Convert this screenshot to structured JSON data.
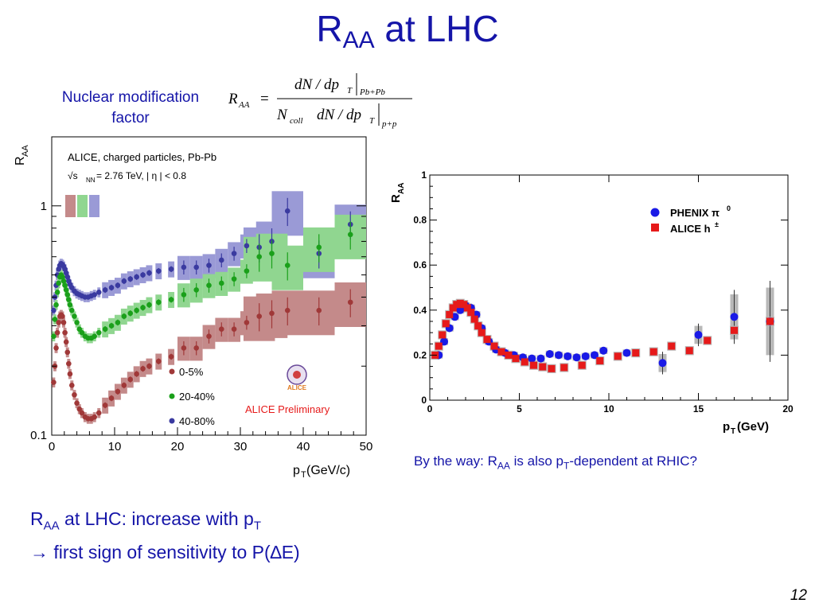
{
  "slide": {
    "title_main": "R",
    "title_sub": "AA",
    "title_rest": " at LHC",
    "nmf_label": "Nuclear modification factor",
    "formula": {
      "lhs_r": "R",
      "lhs_sub": "AA",
      "eq": "=",
      "num": "dN / dp",
      "num_sub_t": "T",
      "num_bar_sub": "Pb+Pb",
      "den_ncoll": "N",
      "den_ncoll_sub": "coll",
      "den": "dN / dp",
      "den_sub_t": "T",
      "den_bar_sub": "p+p"
    },
    "note_a": "By the way: R",
    "note_b": "AA",
    "note_c": " is also p",
    "note_d": "T",
    "note_e": "-dependent at RHIC?",
    "concl_line1_a": "R",
    "concl_line1_b": "AA",
    "concl_line1_c": " at LHC: increase with p",
    "concl_line1_d": "T",
    "concl_line2": "→ first sign of sensitivity to P(∆E)",
    "page_number": "12"
  },
  "colors": {
    "title": "#1515a8",
    "c0_5": "#a03838",
    "c0_5_band": "#c48a8a",
    "c20_40": "#1aa01a",
    "c20_40_band": "#90d690",
    "c40_80": "#3a3aa0",
    "c40_80_band": "#9a9ad6",
    "phenix": "#1a1ae6",
    "alice_rhic": "#e61a1a",
    "alice_prelim": "#e61a1a"
  },
  "chart_data": [
    {
      "type": "scatter",
      "title": "ALICE, charged particles, Pb-Pb",
      "energy_text_a": "√s",
      "energy_text_b": "NN",
      "energy_text_c": " = 2.76 TeV, | η | < 0.8",
      "xlabel": "p",
      "xlabel_sub": "T",
      "xlabel_unit": " (GeV/c)",
      "ylabel": "R",
      "ylabel_sub": "AA",
      "xlim": [
        0,
        50
      ],
      "ylim": [
        0.1,
        2.0
      ],
      "yscale": "log",
      "xticks": [
        "0",
        "10",
        "20",
        "30",
        "40",
        "50"
      ],
      "yticks": [
        "0.1",
        "1"
      ],
      "legend_position": "bottom-center",
      "preliminary_label": "ALICE Preliminary",
      "logo_label": "ALICE",
      "series": [
        {
          "name": "0-5%",
          "x": [
            0.3,
            0.5,
            0.7,
            0.9,
            1.1,
            1.3,
            1.5,
            1.7,
            1.9,
            2.1,
            2.3,
            2.5,
            2.7,
            2.9,
            3.2,
            3.6,
            4.0,
            4.4,
            4.8,
            5.3,
            5.8,
            6.3,
            6.8,
            7.5,
            8.5,
            9.5,
            10.5,
            11.5,
            12.5,
            13.5,
            14.5,
            15.5,
            17.0,
            19.0,
            21.0,
            23.0,
            25.0,
            27.0,
            29.0,
            31.0,
            33.0,
            35.0,
            37.5,
            42.5,
            47.5
          ],
          "values": [
            0.17,
            0.2,
            0.24,
            0.28,
            0.31,
            0.33,
            0.335,
            0.33,
            0.31,
            0.28,
            0.255,
            0.23,
            0.205,
            0.185,
            0.165,
            0.15,
            0.138,
            0.13,
            0.125,
            0.12,
            0.118,
            0.118,
            0.12,
            0.125,
            0.135,
            0.145,
            0.155,
            0.165,
            0.175,
            0.185,
            0.195,
            0.2,
            0.21,
            0.22,
            0.24,
            0.24,
            0.27,
            0.29,
            0.29,
            0.31,
            0.33,
            0.34,
            0.35,
            0.35,
            0.38
          ]
        },
        {
          "name": "20-40%",
          "x": [
            0.3,
            0.5,
            0.7,
            0.9,
            1.1,
            1.3,
            1.5,
            1.7,
            1.9,
            2.1,
            2.3,
            2.5,
            2.7,
            2.9,
            3.2,
            3.6,
            4.0,
            4.4,
            4.8,
            5.3,
            5.8,
            6.3,
            6.8,
            7.5,
            8.5,
            9.5,
            10.5,
            11.5,
            12.5,
            13.5,
            14.5,
            15.5,
            17.0,
            19.0,
            21.0,
            23.0,
            25.0,
            27.0,
            29.0,
            31.0,
            33.0,
            35.0,
            37.5,
            42.5,
            47.5
          ],
          "values": [
            0.27,
            0.32,
            0.37,
            0.42,
            0.46,
            0.49,
            0.5,
            0.49,
            0.47,
            0.45,
            0.43,
            0.41,
            0.39,
            0.37,
            0.35,
            0.33,
            0.31,
            0.29,
            0.28,
            0.27,
            0.265,
            0.265,
            0.27,
            0.28,
            0.29,
            0.3,
            0.31,
            0.33,
            0.34,
            0.35,
            0.36,
            0.37,
            0.38,
            0.39,
            0.41,
            0.43,
            0.45,
            0.46,
            0.48,
            0.52,
            0.6,
            0.62,
            0.55,
            0.66,
            0.75
          ]
        },
        {
          "name": "40-80%",
          "x": [
            0.3,
            0.5,
            0.7,
            0.9,
            1.1,
            1.3,
            1.5,
            1.7,
            1.9,
            2.1,
            2.3,
            2.5,
            2.7,
            2.9,
            3.2,
            3.6,
            4.0,
            4.4,
            4.8,
            5.3,
            5.8,
            6.3,
            6.8,
            7.5,
            8.5,
            9.5,
            10.5,
            11.5,
            12.5,
            13.5,
            14.5,
            15.5,
            17.0,
            19.0,
            21.0,
            23.0,
            25.0,
            27.0,
            29.0,
            31.0,
            33.0,
            35.0,
            37.5,
            42.5,
            47.5
          ],
          "values": [
            0.35,
            0.4,
            0.45,
            0.5,
            0.53,
            0.55,
            0.56,
            0.555,
            0.545,
            0.53,
            0.51,
            0.49,
            0.47,
            0.455,
            0.44,
            0.425,
            0.415,
            0.41,
            0.405,
            0.4,
            0.4,
            0.405,
            0.41,
            0.42,
            0.43,
            0.44,
            0.45,
            0.47,
            0.48,
            0.49,
            0.5,
            0.51,
            0.52,
            0.53,
            0.54,
            0.54,
            0.55,
            0.58,
            0.62,
            0.67,
            0.66,
            0.7,
            0.95,
            0.62,
            0.83
          ]
        }
      ]
    },
    {
      "type": "scatter",
      "xlabel": "p",
      "xlabel_sub": "T",
      "xlabel_unit": " (GeV)",
      "ylabel": "R",
      "ylabel_sub": "AA",
      "xlim": [
        0,
        20
      ],
      "ylim": [
        0,
        1
      ],
      "xticks": [
        "0",
        "5",
        "10",
        "15",
        "20"
      ],
      "yticks": [
        "0",
        "0.2",
        "0.4",
        "0.6",
        "0.8",
        "1"
      ],
      "legend_position": "top-right",
      "series": [
        {
          "name_a": "PHENIX π",
          "name_b": "0",
          "marker": "circle",
          "x": [
            0.5,
            0.8,
            1.1,
            1.4,
            1.7,
            2.0,
            2.3,
            2.6,
            2.9,
            3.3,
            3.7,
            4.2,
            4.7,
            5.2,
            5.7,
            6.2,
            6.7,
            7.2,
            7.7,
            8.2,
            8.7,
            9.2,
            9.7,
            11.0,
            13.0,
            15.0,
            17.0,
            19.0
          ],
          "values": [
            0.2,
            0.26,
            0.32,
            0.37,
            0.4,
            0.42,
            0.41,
            0.38,
            0.32,
            0.26,
            0.225,
            0.21,
            0.2,
            0.19,
            0.185,
            0.185,
            0.205,
            0.2,
            0.195,
            0.19,
            0.195,
            0.2,
            0.22,
            0.21,
            0.165,
            0.29,
            0.37,
            0.35
          ]
        },
        {
          "name_a": "ALICE h",
          "name_b": "±",
          "marker": "square",
          "x": [
            0.3,
            0.5,
            0.7,
            0.9,
            1.1,
            1.3,
            1.5,
            1.7,
            1.9,
            2.1,
            2.3,
            2.5,
            2.7,
            2.9,
            3.2,
            3.6,
            4.0,
            4.4,
            4.8,
            5.3,
            5.8,
            6.3,
            6.8,
            7.5,
            8.5,
            9.5,
            10.5,
            11.5,
            12.5,
            13.5,
            14.5,
            15.5,
            17.0,
            19.0
          ],
          "values": [
            0.2,
            0.24,
            0.29,
            0.34,
            0.38,
            0.41,
            0.425,
            0.43,
            0.425,
            0.41,
            0.39,
            0.36,
            0.33,
            0.3,
            0.27,
            0.24,
            0.215,
            0.2,
            0.185,
            0.17,
            0.155,
            0.148,
            0.14,
            0.145,
            0.155,
            0.175,
            0.195,
            0.21,
            0.215,
            0.24,
            0.22,
            0.265,
            0.31,
            0.35
          ]
        }
      ]
    }
  ]
}
